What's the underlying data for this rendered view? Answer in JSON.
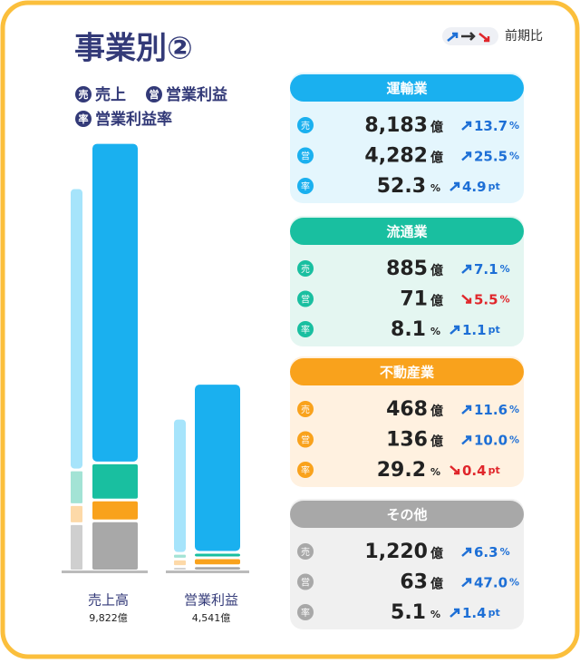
{
  "header": {
    "title": "事業別②",
    "legend": [
      {
        "badge": "売",
        "label": "売上"
      },
      {
        "badge": "営",
        "label": "営業利益"
      },
      {
        "badge": "率",
        "label": "営業利益率"
      }
    ],
    "change_label": "前期比"
  },
  "segments": [
    {
      "name": "運輸業",
      "color": "#1ab0ef",
      "light": "#a6e4fb",
      "background": "#e4f6fd",
      "rows": [
        {
          "badge": "売",
          "value": 8183,
          "value_label": "8,183",
          "unit": "億",
          "direction": "up",
          "change": 13.7,
          "change_unit": "%"
        },
        {
          "badge": "営",
          "value": 4282,
          "value_label": "4,282",
          "unit": "億",
          "direction": "up",
          "change": 25.5,
          "change_unit": "%"
        },
        {
          "badge": "率",
          "value": 52.3,
          "unit": "%",
          "direction": "up",
          "change": 4.9,
          "change_unit": "pt"
        }
      ]
    },
    {
      "name": "流通業",
      "color": "#19bfa0",
      "light": "#a3e3d5",
      "background": "#e4f6f1",
      "rows": [
        {
          "badge": "売",
          "value": 885,
          "unit": "億",
          "direction": "up",
          "change": 7.1,
          "change_unit": "%"
        },
        {
          "badge": "営",
          "value": 71,
          "unit": "億",
          "direction": "down",
          "change": 5.5,
          "change_unit": "%"
        },
        {
          "badge": "率",
          "value": 8.1,
          "unit": "%",
          "direction": "up",
          "change": 1.1,
          "change_unit": "pt"
        }
      ]
    },
    {
      "name": "不動産業",
      "color": "#f9a21c",
      "light": "#fdd9a8",
      "background": "#fff1e0",
      "rows": [
        {
          "badge": "売",
          "value": 468,
          "unit": "億",
          "direction": "up",
          "change": 11.6,
          "change_unit": "%"
        },
        {
          "badge": "営",
          "value": 136,
          "unit": "億",
          "direction": "up",
          "change": 10,
          "change_label": "10.0",
          "change_unit": "%"
        },
        {
          "badge": "率",
          "value": 29.2,
          "unit": "%",
          "direction": "down",
          "change": 0.4,
          "change_unit": "pt"
        }
      ]
    },
    {
      "name": "その他",
      "color": "#a8a8a8",
      "light": "#cfcfcf",
      "background": "#f0f0f0",
      "rows": [
        {
          "badge": "売",
          "value": 1220,
          "value_label": "1,220",
          "unit": "億",
          "direction": "up",
          "change": 6.3,
          "change_unit": "%"
        },
        {
          "badge": "営",
          "value": 63,
          "unit": "億",
          "direction": "up",
          "change": 47,
          "change_label": "47.0",
          "change_unit": "%"
        },
        {
          "badge": "率",
          "value": 5.1,
          "unit": "%",
          "direction": "up",
          "change": 1.4,
          "change_unit": "pt"
        }
      ]
    }
  ],
  "bars": [
    {
      "label": "売上高",
      "total": "9,822",
      "unit": "億"
    },
    {
      "label": "営業利益",
      "total": "4,541",
      "unit": "億"
    }
  ]
}
